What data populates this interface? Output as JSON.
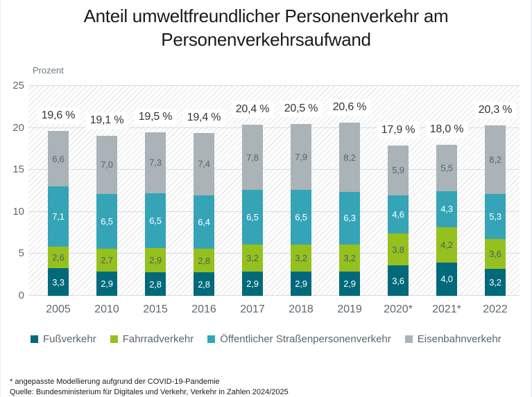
{
  "title": {
    "line1": "Anteil umweltfreundlicher Personenverkehr am",
    "line2": "Personenverkehrsaufwand"
  },
  "y_axis_label": "Prozent",
  "chart_data": {
    "type": "bar",
    "stacked": true,
    "title": "Anteil umweltfreundlicher Personenverkehr am Personenverkehrsaufwand",
    "ylabel": "Prozent",
    "ylim": [
      0,
      25
    ],
    "yticks": [
      0,
      5,
      10,
      15,
      20,
      25
    ],
    "grid": true,
    "background_pattern": "diagonal-hatch",
    "legend_position": "bottom",
    "categories": [
      "2005",
      "2010",
      "2015",
      "2016",
      "2017",
      "2018",
      "2019",
      "2020*",
      "2021*",
      "2022"
    ],
    "series": [
      {
        "name": "Fußverkehr",
        "color": "#00697a",
        "label_color": "#ffffff",
        "values": [
          3.3,
          2.9,
          2.8,
          2.8,
          2.9,
          2.9,
          2.9,
          3.6,
          4.0,
          3.2
        ]
      },
      {
        "name": "Fahrradverkehr",
        "color": "#95c11f",
        "label_color": "#4f5d64",
        "values": [
          2.6,
          2.7,
          2.9,
          2.8,
          3.2,
          3.2,
          3.2,
          3.8,
          4.2,
          3.6
        ]
      },
      {
        "name": "Öffentlicher Straßenpersonenverkehr",
        "color": "#35a4b7",
        "label_color": "#ffffff",
        "values": [
          7.1,
          6.5,
          6.5,
          6.4,
          6.5,
          6.5,
          6.3,
          4.6,
          4.3,
          5.3
        ]
      },
      {
        "name": "Eisenbahnverkehr",
        "color": "#a9b3b8",
        "label_color": "#57646c",
        "values": [
          6.6,
          7.0,
          7.3,
          7.4,
          7.8,
          7.9,
          8.2,
          5.9,
          5.5,
          8.2
        ]
      }
    ],
    "totals": [
      "19,6 %",
      "19,1 %",
      "19,5 %",
      "19,4 %",
      "20,4 %",
      "20,5 %",
      "20,6 %",
      "17,9 %",
      "18,0 %",
      "20,3 %"
    ]
  },
  "colors": {
    "grid": "#d8dbdd",
    "axis_text": "#5d686f",
    "total_text": "#333333"
  },
  "footnotes": {
    "line1": "* angepasste Modellierung aufgrund der COVID-19-Pandemie",
    "line2": "Quelle: Bundesministerium für Digitales und Verkehr, Verkehr in Zahlen 2024/2025"
  }
}
